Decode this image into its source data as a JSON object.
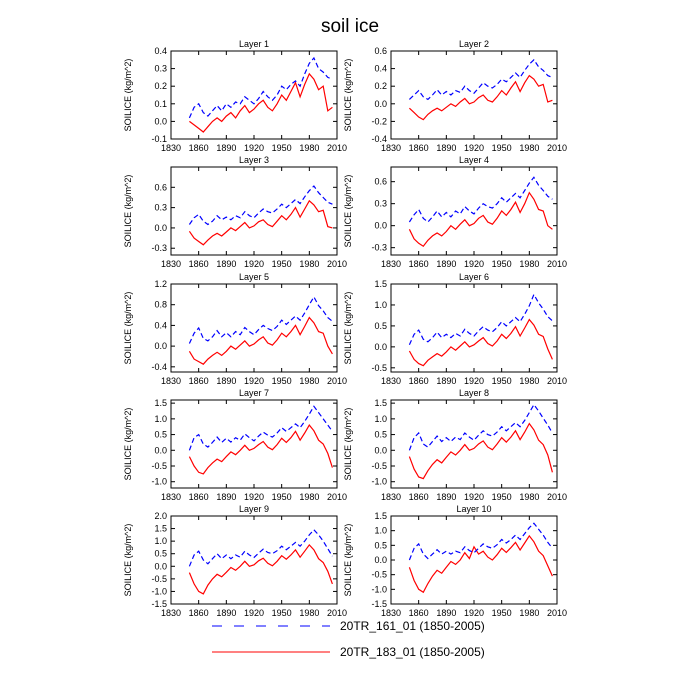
{
  "title": "soil ice",
  "colors": {
    "series_a": "#0000ff",
    "series_b": "#ff0000",
    "axis": "#000000"
  },
  "chart_data": {
    "type": "line",
    "xlabel": "",
    "ylabel": "SOILICE  (kg/m^2)",
    "xlim": [
      1830,
      2010
    ],
    "xticks": [
      1830,
      1860,
      1890,
      1920,
      1950,
      1980,
      2010
    ],
    "x": [
      1850,
      1855,
      1860,
      1865,
      1870,
      1875,
      1880,
      1885,
      1890,
      1895,
      1900,
      1905,
      1910,
      1915,
      1920,
      1925,
      1930,
      1935,
      1940,
      1945,
      1950,
      1955,
      1960,
      1965,
      1970,
      1975,
      1980,
      1985,
      1990,
      1995,
      2000,
      2005
    ],
    "legend": [
      {
        "name": "20TR_161_01 (1850-2005)",
        "style": "dashed",
        "color": "#0000ff"
      },
      {
        "name": "20TR_183_01 (1850-2005)",
        "style": "solid",
        "color": "#ff0000"
      }
    ],
    "panels": [
      {
        "title": "Layer 1",
        "ylim": [
          -0.1,
          0.4
        ],
        "yticks": [
          -0.1,
          0.0,
          0.1,
          0.2,
          0.3,
          0.4
        ],
        "series": [
          {
            "name": "20TR_161_01 (1850-2005)",
            "values": [
              0.02,
              0.08,
              0.1,
              0.05,
              0.03,
              0.06,
              0.09,
              0.06,
              0.1,
              0.08,
              0.11,
              0.1,
              0.14,
              0.12,
              0.1,
              0.13,
              0.17,
              0.14,
              0.12,
              0.15,
              0.2,
              0.18,
              0.21,
              0.23,
              0.2,
              0.27,
              0.33,
              0.36,
              0.3,
              0.28,
              0.25,
              0.24
            ]
          },
          {
            "name": "20TR_183_01 (1850-2005)",
            "values": [
              0.0,
              -0.02,
              -0.04,
              -0.06,
              -0.03,
              0.0,
              0.02,
              0.0,
              0.03,
              0.05,
              0.02,
              0.06,
              0.09,
              0.05,
              0.07,
              0.1,
              0.12,
              0.08,
              0.06,
              0.1,
              0.15,
              0.12,
              0.17,
              0.22,
              0.14,
              0.21,
              0.27,
              0.24,
              0.18,
              0.2,
              0.06,
              0.08
            ]
          }
        ]
      },
      {
        "title": "Layer 2",
        "ylim": [
          -0.4,
          0.6
        ],
        "yticks": [
          -0.4,
          -0.2,
          0.0,
          0.2,
          0.4,
          0.6
        ],
        "series": [
          {
            "name": "20TR_161_01 (1850-2005)",
            "values": [
              0.05,
              0.1,
              0.15,
              0.08,
              0.05,
              0.1,
              0.16,
              0.1,
              0.14,
              0.1,
              0.15,
              0.13,
              0.2,
              0.15,
              0.12,
              0.18,
              0.24,
              0.2,
              0.18,
              0.22,
              0.28,
              0.25,
              0.3,
              0.35,
              0.3,
              0.38,
              0.45,
              0.5,
              0.42,
              0.38,
              0.32,
              0.3
            ]
          },
          {
            "name": "20TR_183_01 (1850-2005)",
            "values": [
              -0.05,
              -0.1,
              -0.15,
              -0.18,
              -0.12,
              -0.08,
              -0.05,
              -0.08,
              -0.04,
              0.0,
              -0.03,
              0.02,
              0.06,
              0.0,
              0.02,
              0.07,
              0.1,
              0.04,
              0.02,
              0.08,
              0.15,
              0.1,
              0.18,
              0.25,
              0.14,
              0.24,
              0.32,
              0.28,
              0.2,
              0.22,
              0.02,
              0.04
            ]
          }
        ]
      },
      {
        "title": "Layer 3",
        "ylim": [
          -0.4,
          0.9
        ],
        "yticks": [
          -0.3,
          0.0,
          0.3,
          0.6
        ],
        "series": [
          {
            "name": "20TR_161_01 (1850-2005)",
            "values": [
              0.05,
              0.15,
              0.2,
              0.1,
              0.05,
              0.1,
              0.18,
              0.12,
              0.16,
              0.12,
              0.18,
              0.15,
              0.24,
              0.18,
              0.15,
              0.22,
              0.28,
              0.24,
              0.22,
              0.28,
              0.35,
              0.3,
              0.36,
              0.42,
              0.36,
              0.46,
              0.55,
              0.62,
              0.52,
              0.45,
              0.38,
              0.35
            ]
          },
          {
            "name": "20TR_183_01 (1850-2005)",
            "values": [
              -0.05,
              -0.15,
              -0.2,
              -0.25,
              -0.18,
              -0.12,
              -0.08,
              -0.12,
              -0.06,
              0.0,
              -0.04,
              0.02,
              0.08,
              0.0,
              0.03,
              0.09,
              0.12,
              0.05,
              0.02,
              0.1,
              0.18,
              0.12,
              0.2,
              0.3,
              0.16,
              0.28,
              0.4,
              0.34,
              0.24,
              0.26,
              0.02,
              0.0
            ]
          }
        ]
      },
      {
        "title": "Layer 4",
        "ylim": [
          -0.4,
          0.8
        ],
        "yticks": [
          -0.3,
          0.0,
          0.3,
          0.6
        ],
        "series": [
          {
            "name": "20TR_161_01 (1850-2005)",
            "values": [
              0.05,
              0.15,
              0.22,
              0.1,
              0.05,
              0.12,
              0.2,
              0.12,
              0.18,
              0.12,
              0.2,
              0.16,
              0.26,
              0.2,
              0.16,
              0.24,
              0.3,
              0.26,
              0.24,
              0.3,
              0.38,
              0.32,
              0.38,
              0.44,
              0.38,
              0.48,
              0.58,
              0.66,
              0.55,
              0.48,
              0.4,
              0.36
            ]
          },
          {
            "name": "20TR_183_01 (1850-2005)",
            "values": [
              -0.05,
              -0.18,
              -0.24,
              -0.28,
              -0.2,
              -0.14,
              -0.1,
              -0.14,
              -0.08,
              0.0,
              -0.05,
              0.02,
              0.08,
              0.0,
              0.03,
              0.1,
              0.14,
              0.05,
              0.02,
              0.1,
              0.2,
              0.14,
              0.22,
              0.32,
              0.18,
              0.3,
              0.45,
              0.36,
              0.22,
              0.2,
              0.0,
              -0.05
            ]
          }
        ]
      },
      {
        "title": "Layer 5",
        "ylim": [
          -0.5,
          1.2
        ],
        "yticks": [
          -0.4,
          0.0,
          0.4,
          0.8,
          1.2
        ],
        "series": [
          {
            "name": "20TR_161_01 (1850-2005)",
            "values": [
              0.05,
              0.25,
              0.35,
              0.15,
              0.1,
              0.18,
              0.3,
              0.18,
              0.26,
              0.18,
              0.28,
              0.22,
              0.36,
              0.28,
              0.22,
              0.32,
              0.4,
              0.34,
              0.3,
              0.38,
              0.5,
              0.42,
              0.5,
              0.58,
              0.5,
              0.64,
              0.8,
              0.95,
              0.78,
              0.68,
              0.55,
              0.48
            ]
          },
          {
            "name": "20TR_183_01 (1850-2005)",
            "values": [
              -0.1,
              -0.25,
              -0.3,
              -0.35,
              -0.25,
              -0.18,
              -0.12,
              -0.18,
              -0.1,
              0.0,
              -0.06,
              0.02,
              0.1,
              0.0,
              0.04,
              0.12,
              0.18,
              0.06,
              0.02,
              0.12,
              0.25,
              0.18,
              0.28,
              0.4,
              0.22,
              0.38,
              0.55,
              0.45,
              0.28,
              0.25,
              0.0,
              -0.15
            ]
          }
        ]
      },
      {
        "title": "Layer 6",
        "ylim": [
          -0.6,
          1.5
        ],
        "yticks": [
          -0.5,
          0.0,
          0.5,
          1.0,
          1.5
        ],
        "series": [
          {
            "name": "20TR_161_01 (1850-2005)",
            "values": [
              0.05,
              0.3,
              0.4,
              0.18,
              0.12,
              0.22,
              0.35,
              0.22,
              0.3,
              0.22,
              0.32,
              0.26,
              0.42,
              0.32,
              0.26,
              0.38,
              0.48,
              0.4,
              0.36,
              0.46,
              0.6,
              0.5,
              0.6,
              0.7,
              0.6,
              0.78,
              0.98,
              1.25,
              1.05,
              0.9,
              0.72,
              0.62
            ]
          },
          {
            "name": "20TR_183_01 (1850-2005)",
            "values": [
              -0.1,
              -0.3,
              -0.4,
              -0.45,
              -0.32,
              -0.24,
              -0.16,
              -0.22,
              -0.12,
              0.0,
              -0.08,
              0.02,
              0.12,
              0.0,
              0.05,
              0.14,
              0.22,
              0.08,
              0.02,
              0.14,
              0.3,
              0.2,
              0.32,
              0.48,
              0.26,
              0.45,
              0.65,
              0.52,
              0.3,
              0.25,
              -0.05,
              -0.3
            ]
          }
        ]
      },
      {
        "title": "Layer 7",
        "ylim": [
          -1.2,
          1.6
        ],
        "yticks": [
          -1.0,
          -0.5,
          0.0,
          0.5,
          1.0,
          1.5
        ],
        "series": [
          {
            "name": "20TR_161_01 (1850-2005)",
            "values": [
              0.0,
              0.4,
              0.5,
              0.2,
              0.1,
              0.25,
              0.42,
              0.25,
              0.38,
              0.26,
              0.4,
              0.32,
              0.52,
              0.4,
              0.3,
              0.45,
              0.58,
              0.48,
              0.42,
              0.55,
              0.72,
              0.6,
              0.72,
              0.84,
              0.72,
              0.92,
              1.15,
              1.4,
              1.2,
              1.0,
              0.8,
              0.6
            ]
          },
          {
            "name": "20TR_183_01 (1850-2005)",
            "values": [
              -0.2,
              -0.5,
              -0.7,
              -0.75,
              -0.55,
              -0.4,
              -0.28,
              -0.36,
              -0.2,
              -0.05,
              -0.14,
              0.0,
              0.16,
              0.0,
              0.06,
              0.18,
              0.28,
              0.1,
              0.02,
              0.18,
              0.38,
              0.25,
              0.4,
              0.6,
              0.32,
              0.55,
              0.8,
              0.62,
              0.32,
              0.2,
              -0.1,
              -0.55
            ]
          }
        ]
      },
      {
        "title": "Layer 8",
        "ylim": [
          -1.2,
          1.6
        ],
        "yticks": [
          -1.0,
          -0.5,
          0.0,
          0.5,
          1.0,
          1.5
        ],
        "series": [
          {
            "name": "20TR_161_01 (1850-2005)",
            "values": [
              0.0,
              0.4,
              0.55,
              0.2,
              0.1,
              0.28,
              0.45,
              0.28,
              0.4,
              0.28,
              0.42,
              0.34,
              0.55,
              0.42,
              0.32,
              0.48,
              0.62,
              0.5,
              0.45,
              0.58,
              0.75,
              0.62,
              0.75,
              0.88,
              0.75,
              0.95,
              1.2,
              1.45,
              1.25,
              1.02,
              0.8,
              0.55
            ]
          },
          {
            "name": "20TR_183_01 (1850-2005)",
            "values": [
              -0.2,
              -0.6,
              -0.85,
              -0.9,
              -0.65,
              -0.45,
              -0.3,
              -0.4,
              -0.22,
              -0.05,
              -0.15,
              0.0,
              0.18,
              0.0,
              0.06,
              0.2,
              0.3,
              0.1,
              0.02,
              0.2,
              0.4,
              0.26,
              0.42,
              0.62,
              0.34,
              0.58,
              0.85,
              0.65,
              0.32,
              0.18,
              -0.15,
              -0.7
            ]
          }
        ]
      },
      {
        "title": "Layer 9",
        "ylim": [
          -1.5,
          2.0
        ],
        "yticks": [
          -1.5,
          -1.0,
          -0.5,
          0.0,
          0.5,
          1.0,
          1.5,
          2.0
        ],
        "series": [
          {
            "name": "20TR_161_01 (1850-2005)",
            "values": [
              0.0,
              0.45,
              0.6,
              0.25,
              0.1,
              0.3,
              0.5,
              0.3,
              0.45,
              0.3,
              0.45,
              0.36,
              0.6,
              0.45,
              0.35,
              0.52,
              0.68,
              0.55,
              0.5,
              0.62,
              0.8,
              0.66,
              0.8,
              0.95,
              0.8,
              1.0,
              1.25,
              1.45,
              1.25,
              1.0,
              0.7,
              0.4
            ]
          },
          {
            "name": "20TR_183_01 (1850-2005)",
            "values": [
              -0.25,
              -0.7,
              -1.0,
              -1.1,
              -0.75,
              -0.5,
              -0.32,
              -0.42,
              -0.24,
              -0.05,
              -0.16,
              0.0,
              0.2,
              0.0,
              0.06,
              0.22,
              0.32,
              0.12,
              0.02,
              0.2,
              0.42,
              0.28,
              0.45,
              0.65,
              0.36,
              0.6,
              0.85,
              0.65,
              0.3,
              0.15,
              -0.2,
              -0.7
            ]
          }
        ]
      },
      {
        "title": "Layer 10",
        "ylim": [
          -1.5,
          1.5
        ],
        "yticks": [
          -1.5,
          -1.0,
          -0.5,
          0.0,
          0.5,
          1.0,
          1.5
        ],
        "series": [
          {
            "name": "20TR_161_01 (1850-2005)",
            "values": [
              0.0,
              0.4,
              0.55,
              0.2,
              0.05,
              0.2,
              0.35,
              0.2,
              0.3,
              0.2,
              0.3,
              0.25,
              0.45,
              0.32,
              0.25,
              0.4,
              0.55,
              0.45,
              0.4,
              0.52,
              0.7,
              0.58,
              0.7,
              0.85,
              0.7,
              0.9,
              1.1,
              1.25,
              1.05,
              0.85,
              0.6,
              0.4
            ]
          },
          {
            "name": "20TR_183_01 (1850-2005)",
            "values": [
              -0.25,
              -0.7,
              -1.0,
              -1.1,
              -0.8,
              -0.55,
              -0.35,
              -0.45,
              -0.25,
              -0.05,
              -0.15,
              0.0,
              0.25,
              0.05,
              0.45,
              0.2,
              0.3,
              0.1,
              0.0,
              0.18,
              0.4,
              0.26,
              0.42,
              0.6,
              0.34,
              0.58,
              0.82,
              0.62,
              0.3,
              0.15,
              -0.2,
              -0.55
            ]
          }
        ]
      }
    ]
  }
}
